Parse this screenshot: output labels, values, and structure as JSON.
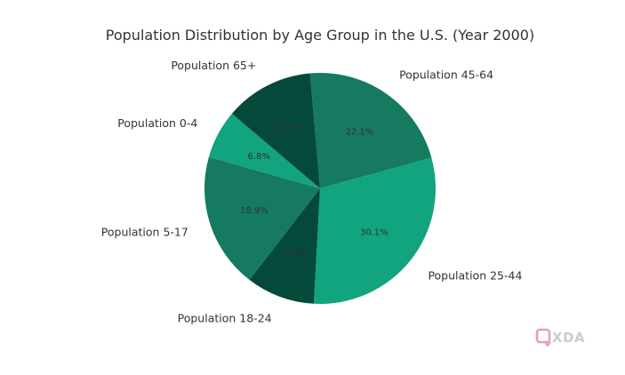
{
  "chart_data": {
    "type": "pie",
    "title": "Population Distribution by Age Group in the U.S. (Year 2000)",
    "slices": [
      {
        "label": "Population 45-64",
        "value": 22.1,
        "pct_label": "22.1%",
        "color": "#157a60"
      },
      {
        "label": "Population 25-44",
        "value": 30.1,
        "pct_label": "30.1%",
        "color": "#12a47f"
      },
      {
        "label": "Population 18-24",
        "value": 9.6,
        "pct_label": "9.6%",
        "color": "#04493a"
      },
      {
        "label": "Population 5-17",
        "value": 18.9,
        "pct_label": "18.9%",
        "color": "#157a60"
      },
      {
        "label": "Population 0-4",
        "value": 6.8,
        "pct_label": "6.8%",
        "color": "#12a47f"
      },
      {
        "label": "Population 65+",
        "value": 12.4,
        "pct_label": "12.4%",
        "color": "#04493a"
      }
    ],
    "start_angle_deg": 95,
    "direction": "clockwise"
  },
  "watermark": {
    "text": "XDA",
    "icon_color": "#e8a0b4",
    "text_color": "#c9ccd0"
  }
}
